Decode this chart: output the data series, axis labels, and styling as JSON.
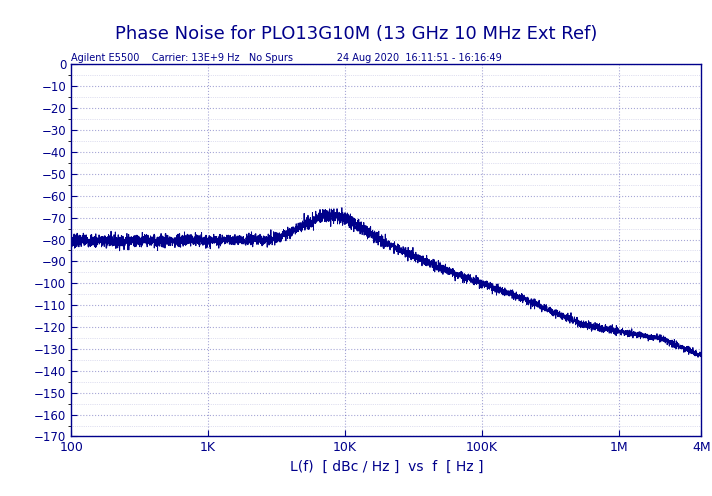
{
  "title": "Phase Noise for PLO13G10M (13 GHz 10 MHz Ext Ref)",
  "subtitle": "Agilent E5500    Carrier: 13E+9 Hz   No Spurs              24 Aug 2020  16:11:51 - 16:16:49",
  "xlabel": "L(f)  [ dBc / Hz ]  vs  f  [ Hz ]",
  "title_color": "#00008B",
  "subtitle_color": "#00008B",
  "line_color": "#00008B",
  "axis_color": "#00008B",
  "tick_color": "#00008B",
  "background_color": "#ffffff",
  "xmin": 100,
  "xmax": 4000000,
  "ymin": -170,
  "ymax": 0,
  "yticks": [
    0,
    -10,
    -20,
    -30,
    -40,
    -50,
    -60,
    -70,
    -80,
    -90,
    -100,
    -110,
    -120,
    -130,
    -140,
    -150,
    -160,
    -170
  ],
  "xtick_labels": [
    "100",
    "1K",
    "10K",
    "100K",
    "1M",
    "4M"
  ],
  "xtick_values": [
    100,
    1000,
    10000,
    100000,
    1000000,
    4000000
  ],
  "grid_color": "#00008B",
  "grid_alpha": 0.35,
  "figsize": [
    7.12,
    4.96
  ],
  "dpi": 100
}
